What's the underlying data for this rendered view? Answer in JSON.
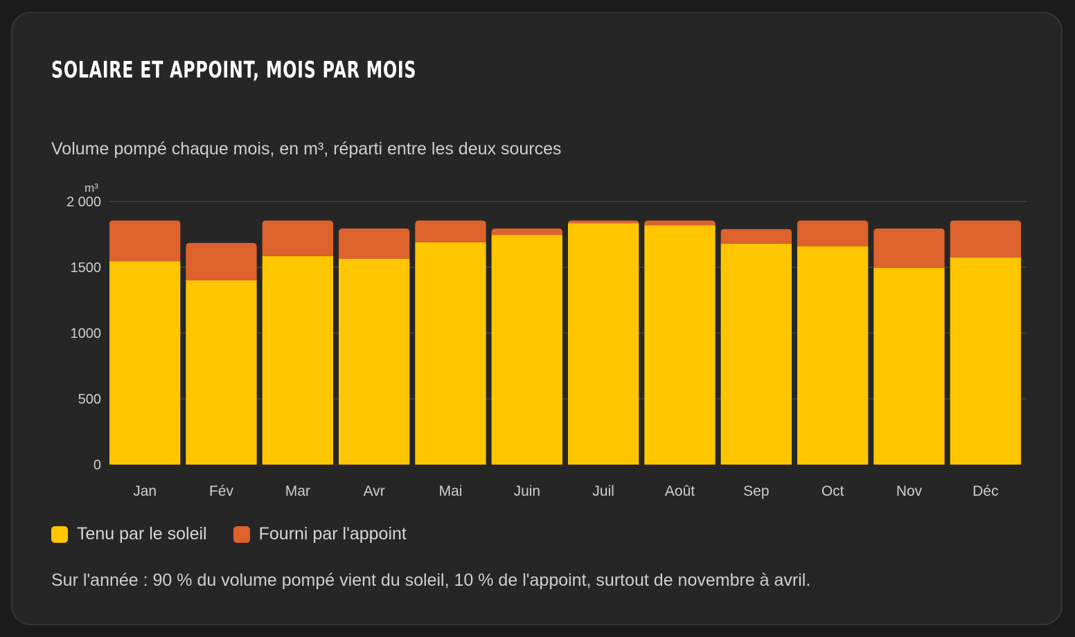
{
  "card": {
    "title": "SOLAIRE ET APPOINT, MOIS PAR MOIS",
    "subtitle": "Volume pompé chaque mois, en m³, réparti entre les deux sources",
    "note": "Sur l'année : 90 % du volume pompé vient du soleil, 10 % de l'appoint, surtout de novembre à avril."
  },
  "colors": {
    "solar": "#ffc600",
    "backup": "#dd622c",
    "grid": "#3b3b3b",
    "text": "#cfcfcf"
  },
  "chart_data": {
    "type": "bar",
    "stacked": true,
    "unit_label": "m³",
    "categories": [
      "Jan",
      "Fév",
      "Mar",
      "Avr",
      "Mai",
      "Juin",
      "Juil",
      "Août",
      "Sep",
      "Oct",
      "Nov",
      "Déc"
    ],
    "series": [
      {
        "name": "Tenu par le soleil",
        "color": "#ffc600",
        "values": [
          1545,
          1400,
          1585,
          1565,
          1690,
          1745,
          1835,
          1820,
          1680,
          1660,
          1495,
          1575
        ]
      },
      {
        "name": "Fourni par l'appoint",
        "color": "#dd622c",
        "values": [
          310,
          285,
          270,
          230,
          165,
          50,
          20,
          35,
          110,
          195,
          300,
          280
        ]
      }
    ],
    "yticks": [
      0,
      500,
      1000,
      1500,
      2000
    ],
    "ytick_labels": [
      "0",
      "500",
      "1000",
      "1500",
      "2 000"
    ],
    "ylim": [
      0,
      2000
    ],
    "grid": true,
    "legend_position": "bottom-left"
  }
}
